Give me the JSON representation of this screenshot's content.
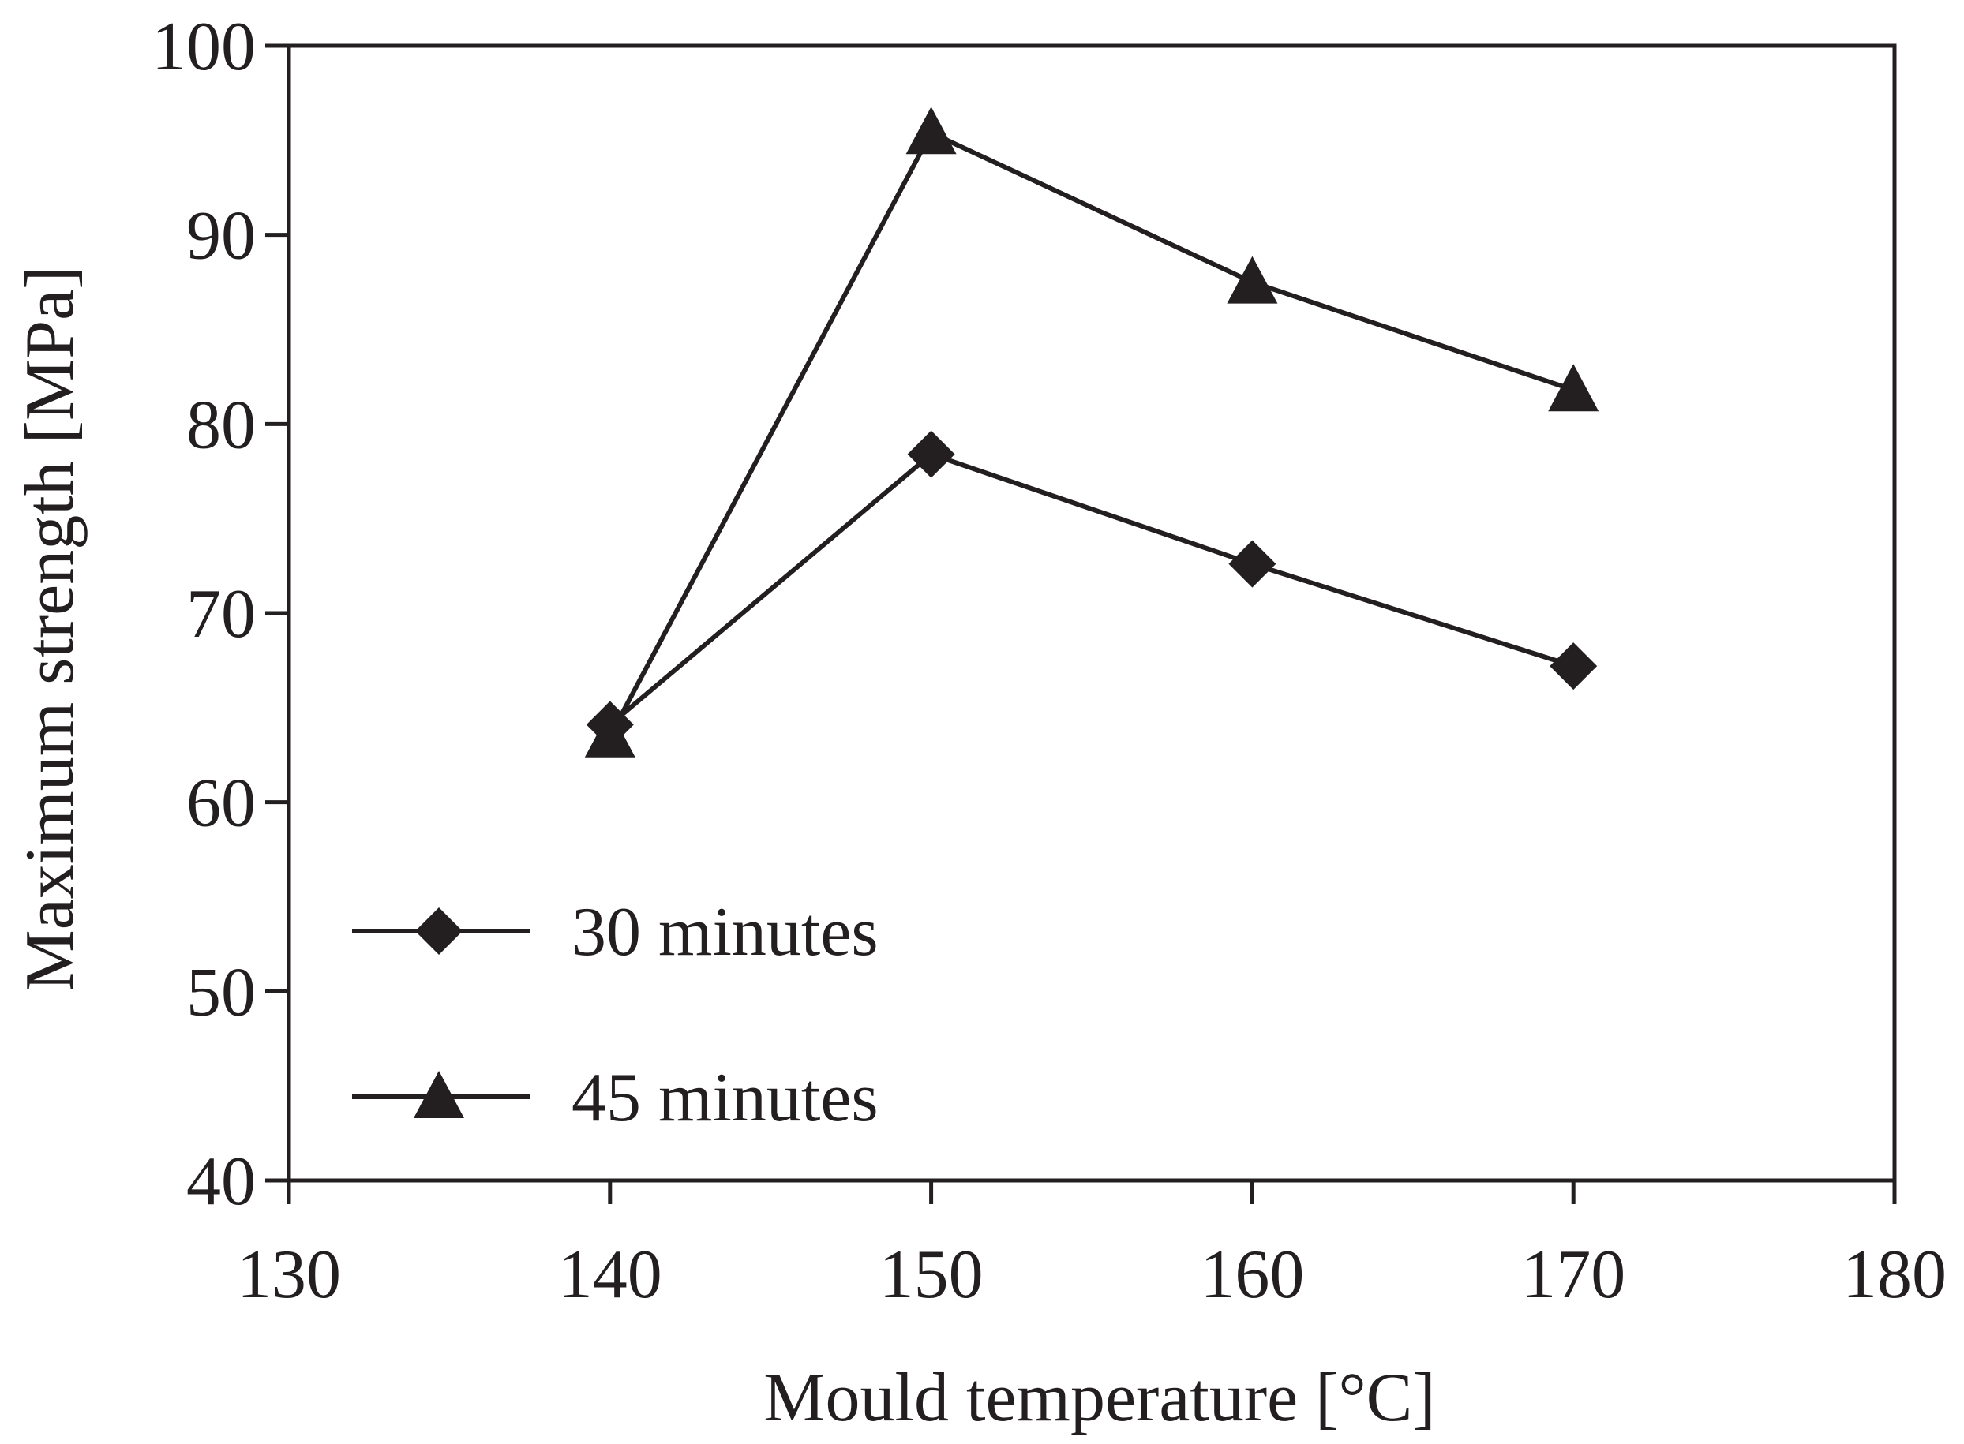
{
  "chart_data": {
    "type": "line",
    "title": "",
    "xlabel": "Mould temperature [°C]",
    "ylabel": "Maximum strength [MPa]",
    "xlim": [
      130,
      180
    ],
    "ylim": [
      40,
      100
    ],
    "xticks": [
      130,
      140,
      150,
      160,
      170,
      180
    ],
    "yticks": [
      40,
      50,
      60,
      70,
      80,
      90,
      100
    ],
    "grid": false,
    "legend_position": "bottom-left",
    "series": [
      {
        "name": "30 minutes",
        "marker": "diamond",
        "x": [
          140,
          150,
          160,
          170
        ],
        "y": [
          64.1,
          78.4,
          72.6,
          67.2
        ]
      },
      {
        "name": "45 minutes",
        "marker": "triangle",
        "x": [
          140,
          150,
          160,
          170
        ],
        "y": [
          63.5,
          95.4,
          87.5,
          81.8
        ]
      }
    ],
    "colors": {
      "ink": "#231f20",
      "background": "#ffffff"
    }
  }
}
